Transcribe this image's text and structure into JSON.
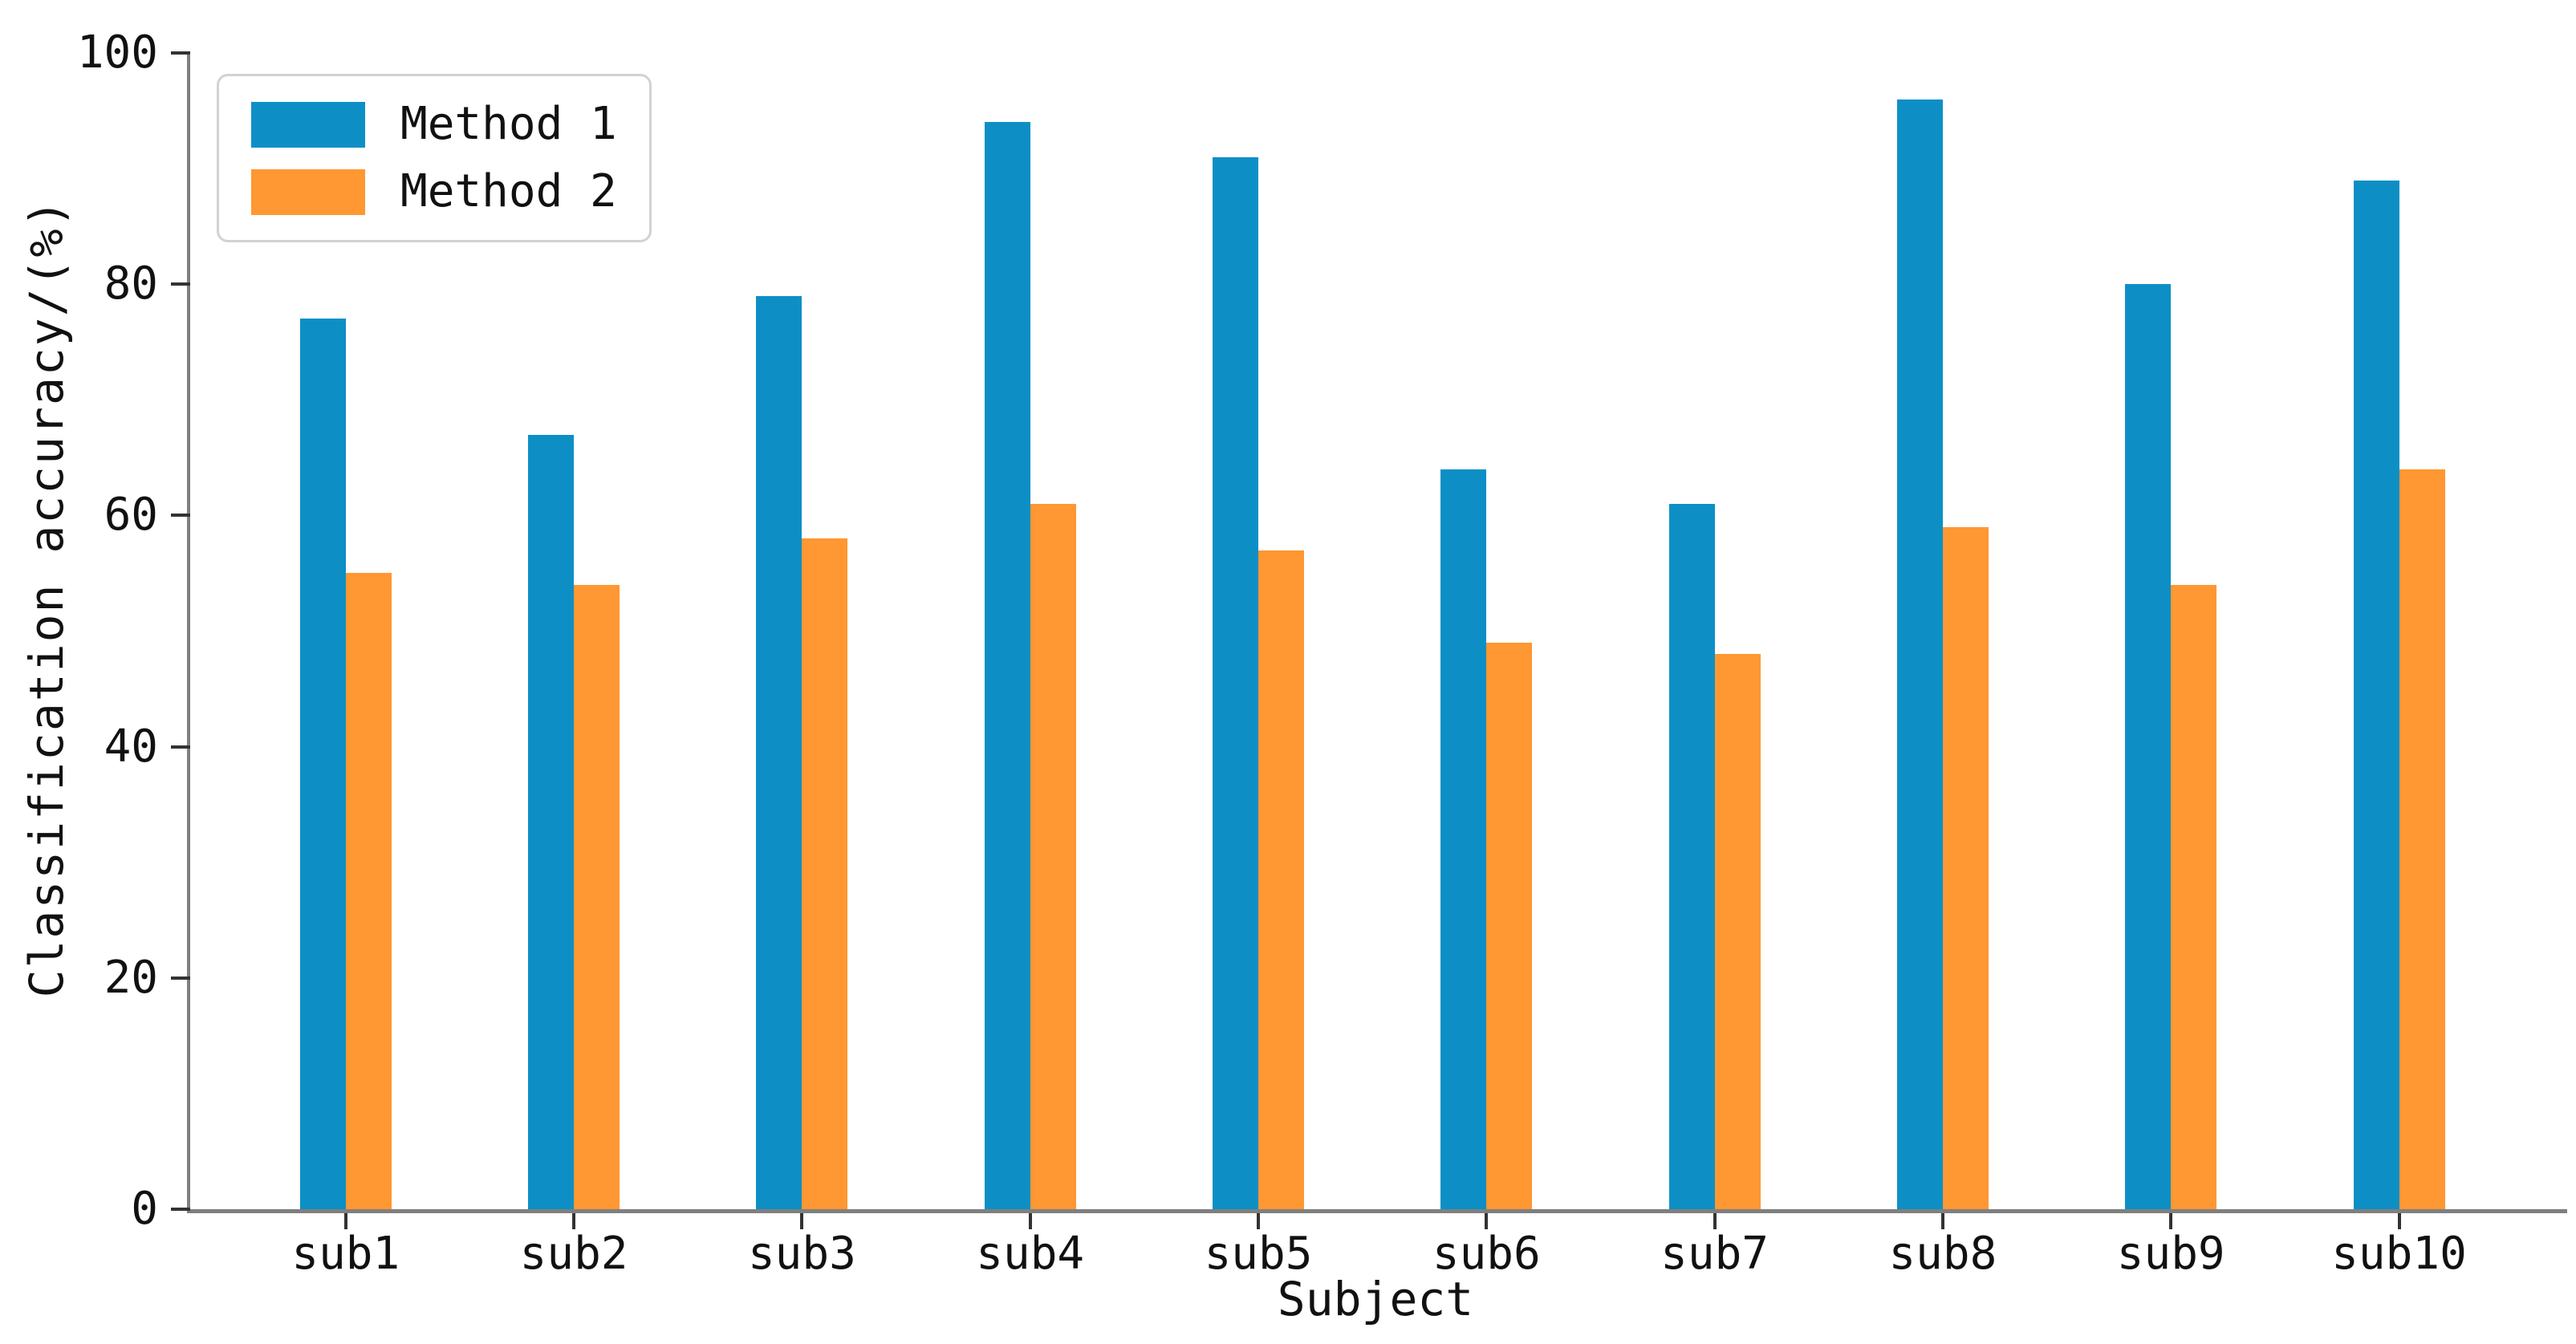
{
  "figure": {
    "background": "#ffffff"
  },
  "chart_data": {
    "type": "bar",
    "title": "",
    "xlabel": "Subject",
    "ylabel": "Classification accuracy/(%)",
    "categories": [
      "sub1",
      "sub2",
      "sub3",
      "sub4",
      "sub5",
      "sub6",
      "sub7",
      "sub8",
      "sub9",
      "sub10"
    ],
    "series": [
      {
        "name": "Method 1",
        "color": "#0d8fc6",
        "values": [
          77,
          67,
          79,
          94,
          91,
          64,
          61,
          96,
          80,
          89
        ]
      },
      {
        "name": "Method 2",
        "color": "#ff9732",
        "values": [
          55,
          54,
          58,
          61,
          57,
          49,
          48,
          59,
          54,
          64
        ]
      }
    ],
    "ylim": [
      0,
      100
    ],
    "yticks": [
      0,
      20,
      40,
      60,
      80,
      100
    ],
    "grid": false,
    "legend_position": "upper left",
    "bar_gap_within_group": 0
  },
  "colors": {
    "spine": "#7f7f7f",
    "tick": "#333333",
    "text": "#111111",
    "legend_border": "#d2d2d2"
  }
}
